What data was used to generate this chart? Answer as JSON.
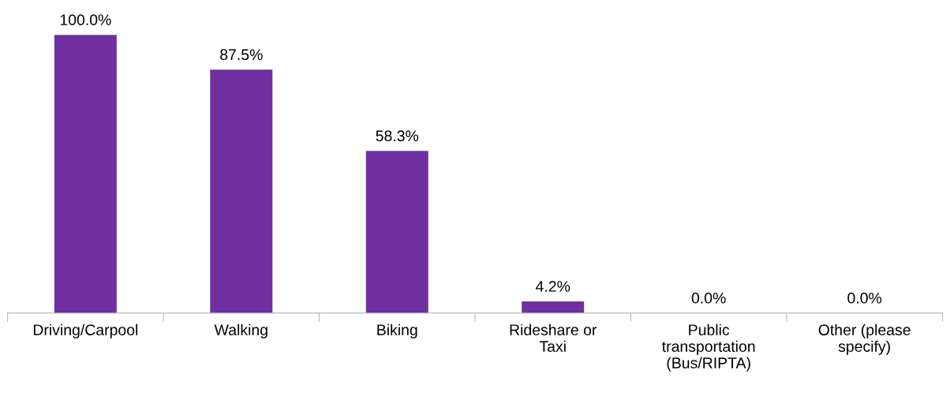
{
  "chart_data": {
    "type": "bar",
    "categories": [
      "Driving/Carpool",
      "Walking",
      "Biking",
      "Rideshare or\nTaxi",
      "Public\ntransportation\n(Bus/RIPTA)",
      "Other (please\nspecify)"
    ],
    "values": [
      100.0,
      87.5,
      58.3,
      4.2,
      0.0,
      0.0
    ],
    "value_labels": [
      "100.0%",
      "87.5%",
      "58.3%",
      "4.2%",
      "0.0%",
      "0.0%"
    ],
    "color": "#7030a0",
    "grid": false,
    "legend": false
  }
}
